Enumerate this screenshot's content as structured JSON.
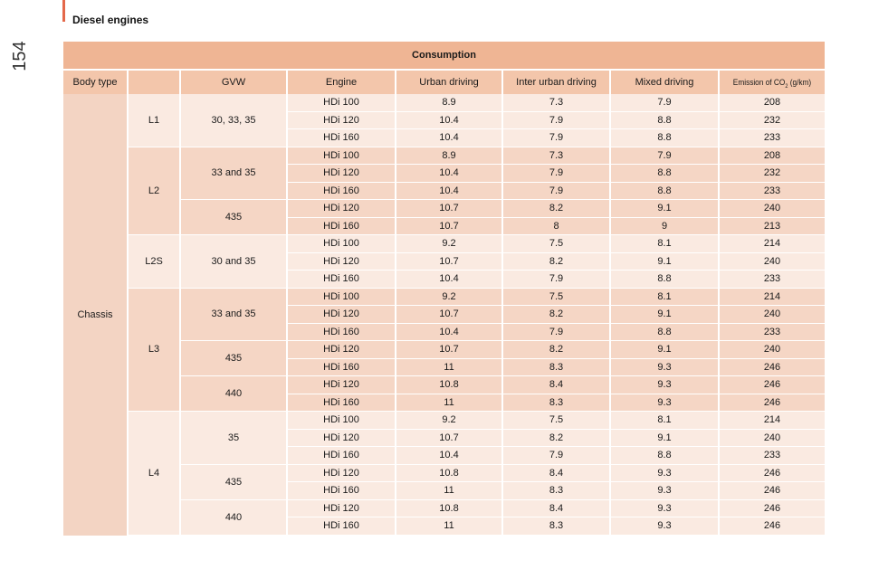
{
  "page": {
    "number": "154",
    "section_title": "Diesel engines"
  },
  "table": {
    "title": "Consumption",
    "columns": [
      "Body type",
      "GVW",
      "Engine",
      "Urban driving",
      "Inter urban driving",
      "Mixed driving",
      "Emission of CO",
      "2",
      "(g/km)"
    ],
    "body_type": "Chassis",
    "groups": [
      {
        "model": "L1",
        "shade": "light",
        "gvw": [
          {
            "label": "30, 33, 35",
            "rows": [
              [
                "HDi 100",
                "8.9",
                "7.3",
                "7.9",
                "208"
              ],
              [
                "HDi 120",
                "10.4",
                "7.9",
                "8.8",
                "232"
              ],
              [
                "HDi 160",
                "10.4",
                "7.9",
                "8.8",
                "233"
              ]
            ]
          }
        ]
      },
      {
        "model": "L2",
        "shade": "dark",
        "gvw": [
          {
            "label": "33 and 35",
            "rows": [
              [
                "HDi 100",
                "8.9",
                "7.3",
                "7.9",
                "208"
              ],
              [
                "HDi 120",
                "10.4",
                "7.9",
                "8.8",
                "232"
              ],
              [
                "HDi 160",
                "10.4",
                "7.9",
                "8.8",
                "233"
              ]
            ]
          },
          {
            "label": "435",
            "rows": [
              [
                "HDi 120",
                "10.7",
                "8.2",
                "9.1",
                "240"
              ],
              [
                "HDi 160",
                "10.7",
                "8",
                "9",
                "213"
              ]
            ]
          }
        ]
      },
      {
        "model": "L2S",
        "shade": "light",
        "gvw": [
          {
            "label": "30 and 35",
            "rows": [
              [
                "HDi 100",
                "9.2",
                "7.5",
                "8.1",
                "214"
              ],
              [
                "HDi 120",
                "10.7",
                "8.2",
                "9.1",
                "240"
              ],
              [
                "HDi 160",
                "10.4",
                "7.9",
                "8.8",
                "233"
              ]
            ]
          }
        ]
      },
      {
        "model": "L3",
        "shade": "dark",
        "gvw": [
          {
            "label": "33 and 35",
            "rows": [
              [
                "HDi 100",
                "9.2",
                "7.5",
                "8.1",
                "214"
              ],
              [
                "HDi 120",
                "10.7",
                "8.2",
                "9.1",
                "240"
              ],
              [
                "HDi 160",
                "10.4",
                "7.9",
                "8.8",
                "233"
              ]
            ]
          },
          {
            "label": "435",
            "rows": [
              [
                "HDi 120",
                "10.7",
                "8.2",
                "9.1",
                "240"
              ],
              [
                "HDi 160",
                "11",
                "8.3",
                "9.3",
                "246"
              ]
            ]
          },
          {
            "label": "440",
            "rows": [
              [
                "HDi 120",
                "10.8",
                "8.4",
                "9.3",
                "246"
              ],
              [
                "HDi 160",
                "11",
                "8.3",
                "9.3",
                "246"
              ]
            ]
          }
        ]
      },
      {
        "model": "L4",
        "shade": "light",
        "gvw": [
          {
            "label": "35",
            "rows": [
              [
                "HDi 100",
                "9.2",
                "7.5",
                "8.1",
                "214"
              ],
              [
                "HDi 120",
                "10.7",
                "8.2",
                "9.1",
                "240"
              ],
              [
                "HDi 160",
                "10.4",
                "7.9",
                "8.8",
                "233"
              ]
            ]
          },
          {
            "label": "435",
            "rows": [
              [
                "HDi 120",
                "10.8",
                "8.4",
                "9.3",
                "246"
              ],
              [
                "HDi 160",
                "11",
                "8.3",
                "9.3",
                "246"
              ]
            ]
          },
          {
            "label": "440",
            "rows": [
              [
                "HDi 120",
                "10.8",
                "8.4",
                "9.3",
                "246"
              ],
              [
                "HDi 160",
                "11",
                "8.3",
                "9.3",
                "246"
              ]
            ]
          }
        ]
      }
    ]
  }
}
